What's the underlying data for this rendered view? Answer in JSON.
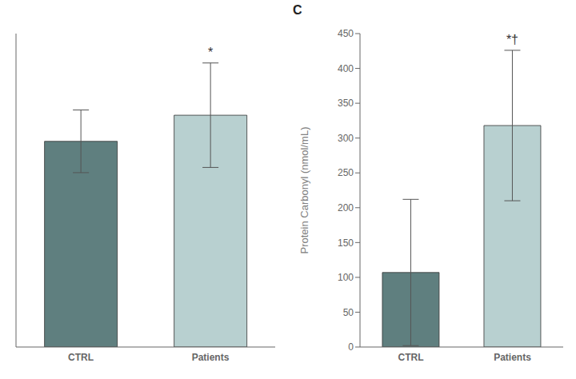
{
  "chart_data": [
    {
      "type": "bar",
      "categories": [
        "CTRL",
        "Patients"
      ],
      "values": [
        315,
        355
      ],
      "errors": [
        48,
        80
      ],
      "colors": [
        "#5f7f7f",
        "#b8d0d0"
      ],
      "ylim": [
        0,
        480
      ],
      "tick_labels": "x",
      "annotations": [
        {
          "text": "*",
          "category": "Patients"
        }
      ]
    },
    {
      "type": "bar",
      "title": "C",
      "categories": [
        "CTRL",
        "Patients"
      ],
      "values": [
        107,
        318
      ],
      "errors": [
        105,
        108
      ],
      "colors": [
        "#5f7f7f",
        "#b8d0d0"
      ],
      "ylim": [
        0,
        450
      ],
      "yticks": [
        0,
        50,
        100,
        150,
        200,
        250,
        300,
        350,
        400,
        450
      ],
      "ylabel": "Protein Carbonyl  (nmol/mL)",
      "annotations": [
        {
          "text": "*†",
          "category": "Patients"
        }
      ]
    }
  ]
}
